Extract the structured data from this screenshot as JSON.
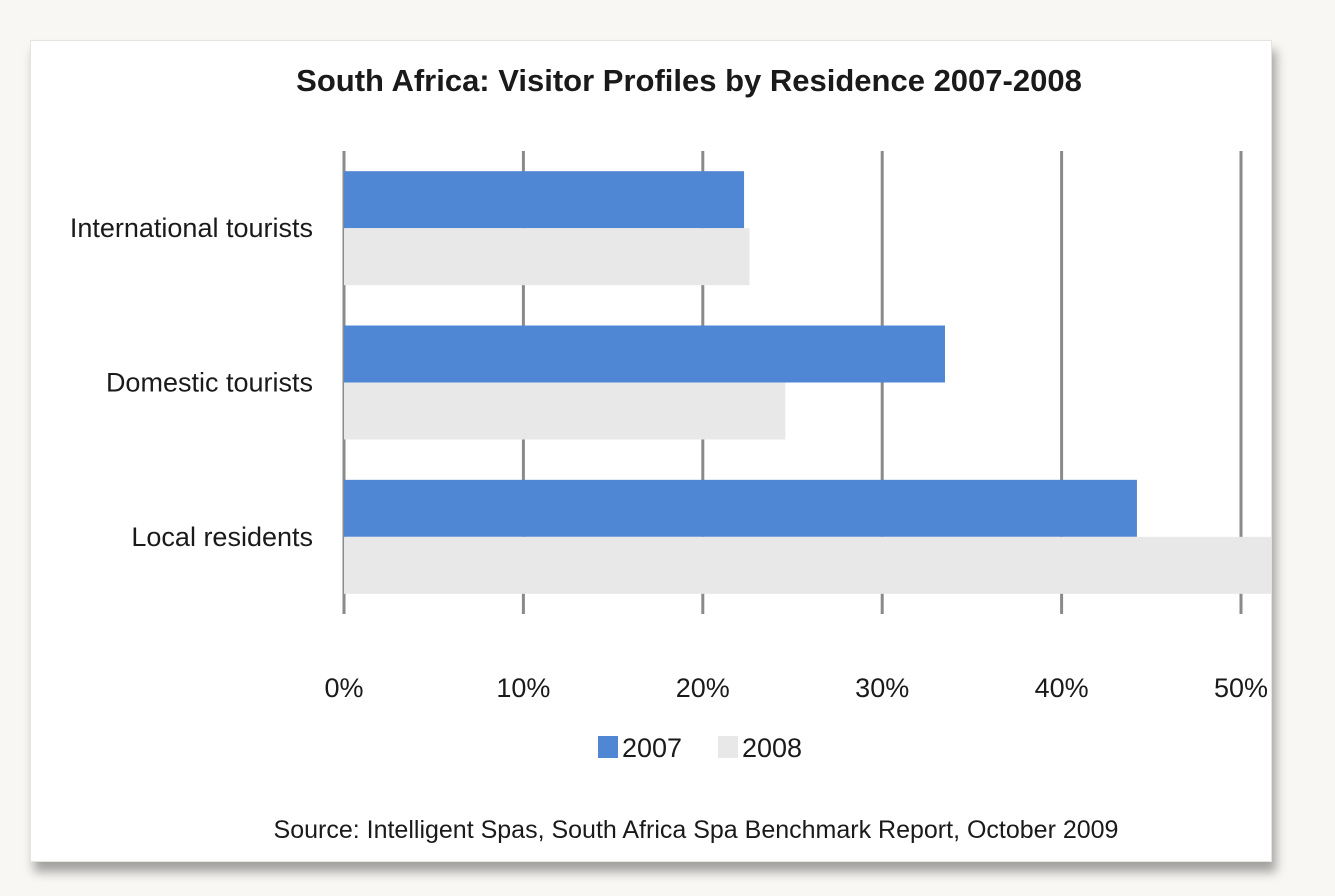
{
  "chart_data": {
    "type": "bar",
    "orientation": "horizontal",
    "title": "South Africa:  Visitor Profiles by Residence 2007-2008",
    "categories": [
      "International tourists",
      "Domestic tourists",
      "Local residents"
    ],
    "series": [
      {
        "name": "2007",
        "values": [
          22.3,
          33.5,
          44.2
        ],
        "color": "#4f87d4"
      },
      {
        "name": "2008",
        "values": [
          22.6,
          24.6,
          52.0
        ],
        "color": "#e8e8e8"
      }
    ],
    "xlim": [
      0,
      50
    ],
    "x_ticks": [
      "0%",
      "10%",
      "20%",
      "30%",
      "40%",
      "50%"
    ],
    "grid": "vertical",
    "gridline_color": "#8a8a8a",
    "legend_position": "bottom",
    "source": "Source: Intelligent Spas, South Africa Spa Benchmark Report, October 2009"
  }
}
